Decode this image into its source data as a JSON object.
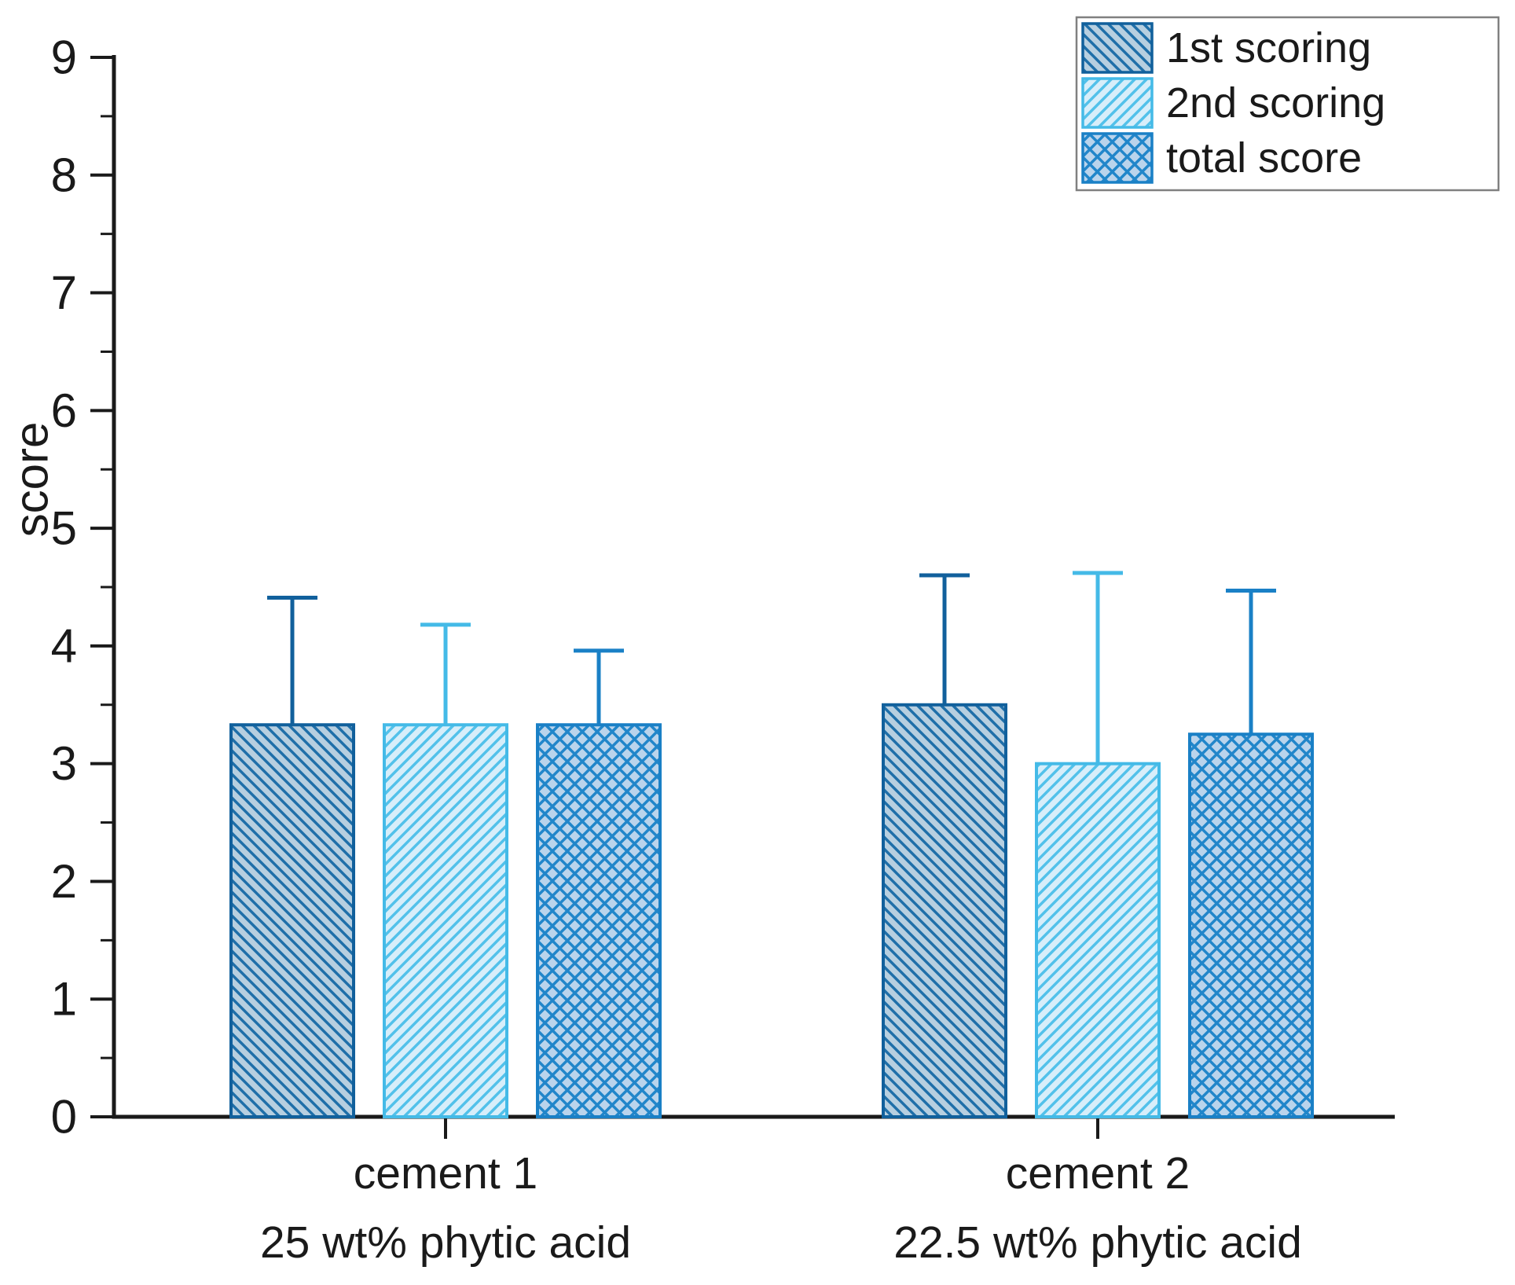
{
  "figure": {
    "background": "#ffffff",
    "text_color": "#1a1a1a",
    "axis_color": "#1a1a1a"
  },
  "chart_data": {
    "type": "bar",
    "title": "",
    "xlabel": "",
    "ylabel": "score",
    "ylim": [
      0,
      9
    ],
    "y_major_step": 1,
    "y_minor_step": 0.5,
    "y_tick_labels": [
      "0",
      "1",
      "2",
      "3",
      "4",
      "5",
      "6",
      "7",
      "8",
      "9"
    ],
    "grid": false,
    "legend_position": "top-right",
    "legend_border_color": "#808080",
    "categories": [
      {
        "label": "cement 1",
        "sublabel": "25 wt% phytic acid"
      },
      {
        "label": "cement 2",
        "sublabel": "22.5 wt% phytic acid"
      }
    ],
    "series": [
      {
        "name": "1st scoring",
        "values": [
          3.33,
          3.5
        ],
        "errors_plus": [
          1.08,
          1.1
        ],
        "hatch": "diagonal-back",
        "fill_color": "#b7cfe0",
        "hatch_color": "#1f6fa9",
        "line_color": "#11609c"
      },
      {
        "name": "2nd scoring",
        "values": [
          3.33,
          3.0
        ],
        "errors_plus": [
          0.85,
          1.62
        ],
        "hatch": "diagonal-forward",
        "fill_color": "#d7eefa",
        "hatch_color": "#52c1ea",
        "line_color": "#44bae7"
      },
      {
        "name": "total score",
        "values": [
          3.33,
          3.25
        ],
        "errors_plus": [
          0.63,
          1.22
        ],
        "hatch": "cross-diagonal",
        "fill_color": "#bad4ec",
        "hatch_color": "#2186ca",
        "line_color": "#1a80c6"
      }
    ]
  }
}
